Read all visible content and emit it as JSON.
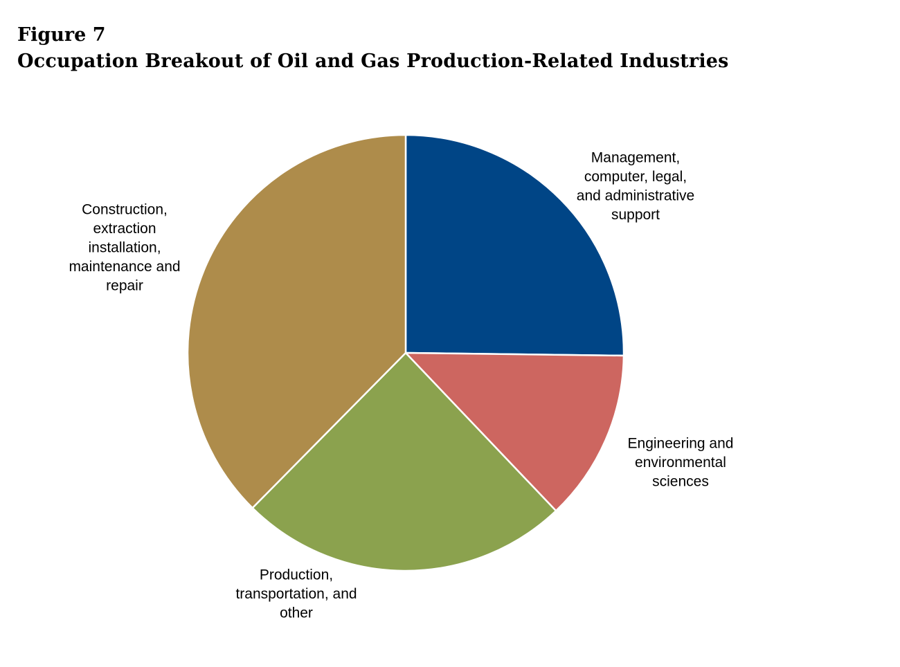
{
  "figure": {
    "number": "Figure 7",
    "title": "Occupation Breakout of Oil and Gas Production-Related Industries"
  },
  "chart_data": {
    "type": "pie",
    "start_angle_deg": 0,
    "direction": "clockwise",
    "slices": [
      {
        "label": "Management, computer, legal, and administrative support",
        "label_lines": [
          "Management,",
          "computer, legal,",
          "and administrative",
          "support"
        ],
        "value": 25.2,
        "color": "#004586"
      },
      {
        "label": "Engineering and environmental sciences",
        "label_lines": [
          "Engineering and",
          "environmental",
          "sciences"
        ],
        "value": 12.7,
        "color": "#cd6660"
      },
      {
        "label": "Production, transportation, and other",
        "label_lines": [
          "Production,",
          "transportation, and",
          "other"
        ],
        "value": 24.5,
        "color": "#8ba24e"
      },
      {
        "label": "Construction, extraction installation, maintenance and repair",
        "label_lines": [
          "Construction,",
          "extraction",
          "installation,",
          "maintenance and",
          "repair"
        ],
        "value": 37.6,
        "color": "#ae8c4b"
      }
    ]
  }
}
